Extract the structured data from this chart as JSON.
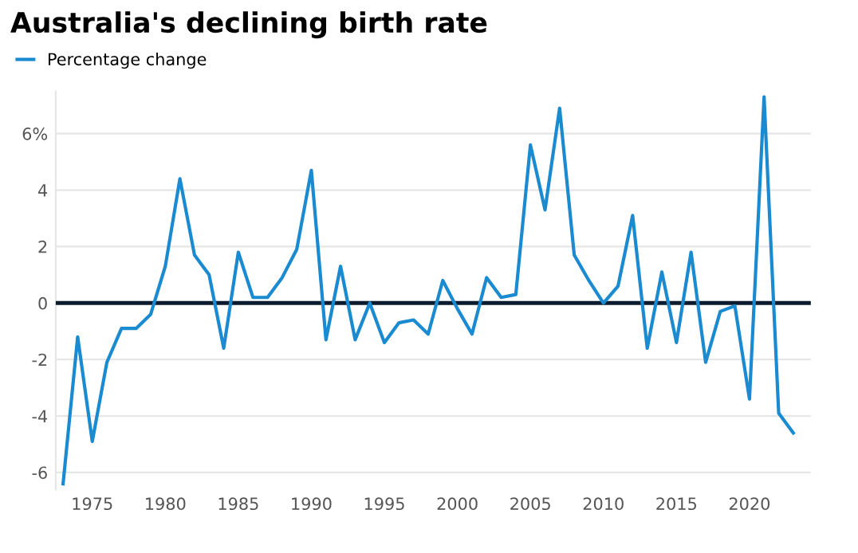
{
  "chart_data": {
    "type": "line",
    "title": "Australia's declining birth rate",
    "x": [
      1973,
      1974,
      1975,
      1976,
      1977,
      1978,
      1979,
      1980,
      1981,
      1982,
      1983,
      1984,
      1985,
      1986,
      1987,
      1988,
      1989,
      1990,
      1991,
      1992,
      1993,
      1994,
      1995,
      1996,
      1997,
      1998,
      1999,
      2000,
      2001,
      2002,
      2003,
      2004,
      2005,
      2006,
      2007,
      2008,
      2009,
      2010,
      2011,
      2012,
      2013,
      2014,
      2015,
      2016,
      2017,
      2018,
      2019,
      2020,
      2021,
      2022,
      2023
    ],
    "series": [
      {
        "name": "Percentage change",
        "color": "#1a8ad1",
        "values": [
          -6.4,
          -1.2,
          -4.9,
          -2.1,
          -0.9,
          -0.9,
          -0.4,
          1.3,
          4.4,
          1.7,
          1.0,
          -1.6,
          1.8,
          0.2,
          0.2,
          0.9,
          1.9,
          4.7,
          -1.3,
          1.3,
          -1.3,
          0.0,
          -1.4,
          -0.7,
          -0.6,
          -1.1,
          0.8,
          -0.2,
          -1.1,
          0.9,
          0.2,
          0.3,
          5.6,
          3.3,
          6.9,
          1.7,
          0.8,
          0.0,
          0.6,
          3.1,
          -1.6,
          1.1,
          -1.4,
          1.8,
          -2.1,
          -0.3,
          -0.1,
          -3.4,
          7.3,
          -3.9,
          -4.6
        ]
      }
    ],
    "xlim": [
      1972.5,
      2024.2
    ],
    "xticks": [
      1975,
      1980,
      1985,
      1990,
      1995,
      2000,
      2005,
      2010,
      2015,
      2020
    ],
    "ylim": [
      -6.6,
      7.5
    ],
    "yticks": [
      -6,
      -4,
      -2,
      0,
      2,
      4,
      {
        "value": 6,
        "label": "6%"
      }
    ],
    "ref_lines": [
      {
        "axis": "y",
        "value": 0,
        "label": null,
        "color": "#0d1b2e"
      }
    ],
    "grid": "y",
    "legend": "top left",
    "marker": "none",
    "line_style": "solid"
  }
}
